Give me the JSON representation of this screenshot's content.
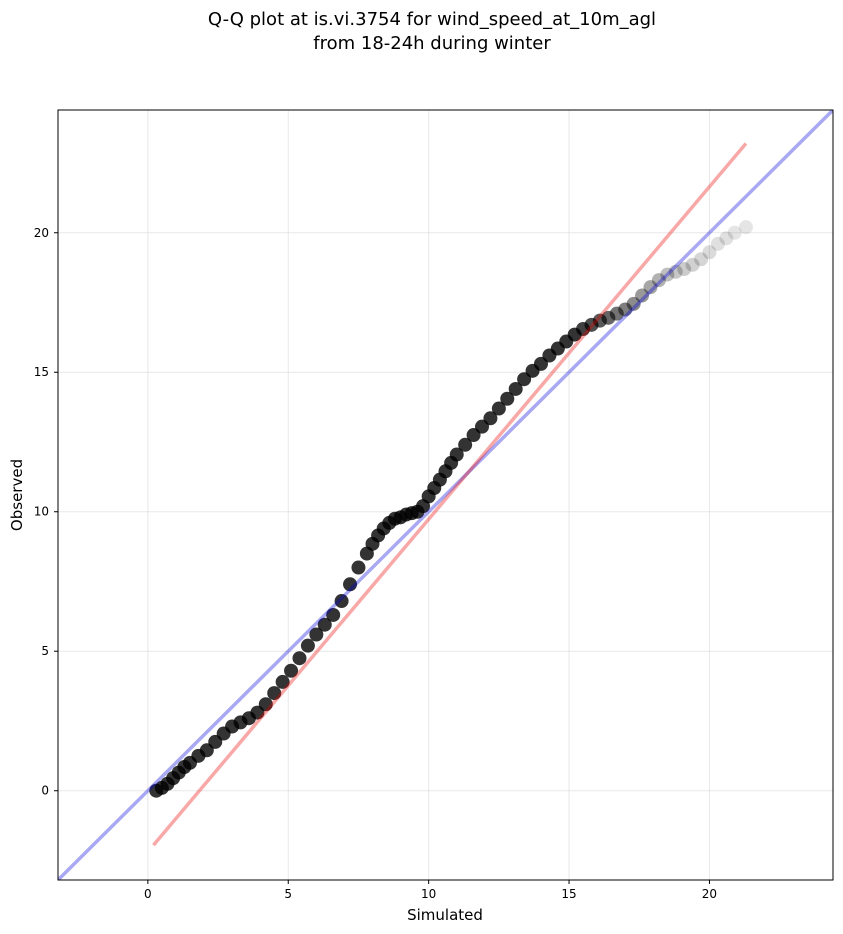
{
  "chart_data": {
    "type": "scatter",
    "title_line1": "Q-Q plot at is.vi.3754 for wind_speed_at_10m_agl",
    "title_line2": "from 18-24h during winter",
    "xlabel": "Simulated",
    "ylabel": "Observed",
    "xlim": [
      -3.2,
      24.4
    ],
    "ylim": [
      -3.2,
      24.4
    ],
    "xticks": [
      0,
      5,
      10,
      15,
      20
    ],
    "yticks": [
      0,
      5,
      10,
      15,
      20
    ],
    "grid": true,
    "point_color": "#000000",
    "identity_line_color": "#0000dd",
    "fit_line_color": "#ee0000",
    "identity_line": {
      "x": [
        -3.2,
        24.4
      ],
      "y": [
        -3.2,
        24.4
      ]
    },
    "fit_line": {
      "x": [
        0.2,
        21.3
      ],
      "y": [
        -1.95,
        23.2
      ]
    },
    "points": {
      "x": [
        0.3,
        0.5,
        0.7,
        0.9,
        1.1,
        1.3,
        1.5,
        1.8,
        2.1,
        2.4,
        2.7,
        3.0,
        3.3,
        3.6,
        3.9,
        4.2,
        4.5,
        4.8,
        5.1,
        5.4,
        5.7,
        6.0,
        6.3,
        6.6,
        6.9,
        7.2,
        7.5,
        7.8,
        8.0,
        8.2,
        8.4,
        8.6,
        8.8,
        9.0,
        9.2,
        9.4,
        9.6,
        9.8,
        10.0,
        10.2,
        10.4,
        10.6,
        10.8,
        11.0,
        11.3,
        11.6,
        11.9,
        12.2,
        12.5,
        12.8,
        13.1,
        13.4,
        13.7,
        14.0,
        14.3,
        14.6,
        14.9,
        15.2,
        15.5,
        15.8,
        16.1,
        16.4,
        16.7,
        17.0,
        17.3,
        17.6,
        17.9,
        18.2,
        18.5,
        18.8,
        19.1,
        19.4,
        19.7,
        20.0,
        20.3,
        20.6,
        20.9,
        21.3
      ],
      "y": [
        0.0,
        0.1,
        0.25,
        0.45,
        0.65,
        0.85,
        1.0,
        1.25,
        1.45,
        1.75,
        2.05,
        2.3,
        2.45,
        2.6,
        2.8,
        3.1,
        3.5,
        3.9,
        4.3,
        4.75,
        5.2,
        5.6,
        5.95,
        6.3,
        6.8,
        7.4,
        8.0,
        8.5,
        8.85,
        9.15,
        9.4,
        9.6,
        9.75,
        9.8,
        9.9,
        9.95,
        10.0,
        10.2,
        10.55,
        10.85,
        11.15,
        11.45,
        11.75,
        12.05,
        12.4,
        12.75,
        13.05,
        13.35,
        13.7,
        14.05,
        14.4,
        14.75,
        15.05,
        15.3,
        15.6,
        15.85,
        16.1,
        16.35,
        16.55,
        16.7,
        16.85,
        16.95,
        17.1,
        17.25,
        17.45,
        17.75,
        18.05,
        18.3,
        18.5,
        18.6,
        18.7,
        18.85,
        19.05,
        19.3,
        19.6,
        19.8,
        20.0,
        20.2
      ],
      "alpha": [
        0.8,
        0.8,
        0.8,
        0.8,
        0.8,
        0.8,
        0.8,
        0.8,
        0.8,
        0.8,
        0.8,
        0.8,
        0.8,
        0.8,
        0.8,
        0.8,
        0.8,
        0.8,
        0.8,
        0.8,
        0.8,
        0.8,
        0.8,
        0.8,
        0.8,
        0.8,
        0.8,
        0.8,
        0.8,
        0.8,
        0.8,
        0.8,
        0.8,
        0.8,
        0.8,
        0.8,
        0.8,
        0.8,
        0.8,
        0.8,
        0.8,
        0.8,
        0.8,
        0.8,
        0.8,
        0.8,
        0.8,
        0.8,
        0.8,
        0.8,
        0.8,
        0.8,
        0.8,
        0.8,
        0.8,
        0.8,
        0.8,
        0.8,
        0.75,
        0.7,
        0.65,
        0.6,
        0.55,
        0.5,
        0.45,
        0.4,
        0.35,
        0.3,
        0.25,
        0.22,
        0.2,
        0.18,
        0.16,
        0.14,
        0.12,
        0.12,
        0.1,
        0.1
      ]
    }
  }
}
